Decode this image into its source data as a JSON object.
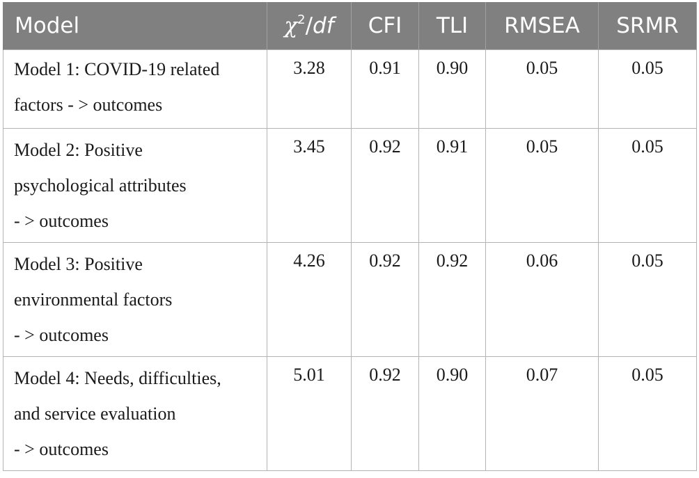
{
  "table": {
    "headers": {
      "model": "Model",
      "chi_symbol": "χ",
      "chi_sup": "2",
      "chi_sep": "/",
      "df": "df",
      "cfi": "CFI",
      "tli": "TLI",
      "rmsea": "RMSEA",
      "srmr": "SRMR"
    },
    "rows": [
      {
        "model": "Model 1: COVID-19 related factors - > outcomes",
        "line1": "Model 1: COVID-19 related",
        "line2": "factors - > outcomes",
        "line3": "",
        "chi_df": "3.28",
        "cfi": "0.91",
        "tli": "0.90",
        "rmsea": "0.05",
        "srmr": "0.05"
      },
      {
        "model": "Model 2: Positive psychological attributes - > outcomes",
        "line1": "Model 2: Positive",
        "line2": "psychological attributes",
        "line3": "- > outcomes",
        "chi_df": "3.45",
        "cfi": "0.92",
        "tli": "0.91",
        "rmsea": "0.05",
        "srmr": "0.05"
      },
      {
        "model": "Model 3: Positive environmental factors - > outcomes",
        "line1": "Model 3: Positive",
        "line2": "environmental factors",
        "line3": "- > outcomes",
        "chi_df": "4.26",
        "cfi": "0.92",
        "tli": "0.92",
        "rmsea": "0.06",
        "srmr": "0.05"
      },
      {
        "model": "Model 4: Needs, difficulties, and service evaluation - > outcomes",
        "line1": "Model 4: Needs, difficulties,",
        "line2": "and service evaluation",
        "line3": "- > outcomes",
        "chi_df": "5.01",
        "cfi": "0.92",
        "tli": "0.90",
        "rmsea": "0.07",
        "srmr": "0.05"
      }
    ]
  },
  "colors": {
    "header_bg": "#808080",
    "header_text": "#ffffff",
    "grid": "#b4b4b4",
    "body_text": "#1a1a1a"
  }
}
